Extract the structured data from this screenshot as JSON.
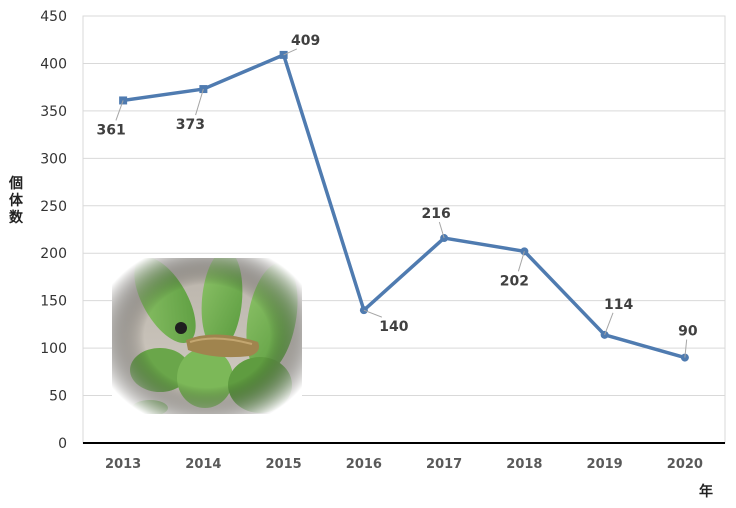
{
  "chart_data": {
    "type": "line",
    "categories": [
      "2013",
      "2014",
      "2015",
      "2016",
      "2017",
      "2018",
      "2019",
      "2020"
    ],
    "series": [
      {
        "values": [
          361,
          373,
          409,
          140,
          216,
          202,
          114,
          90
        ],
        "color": "#4f7bb0"
      }
    ],
    "data_labels": [
      "361",
      "373",
      "409",
      "140",
      "216",
      "202",
      "114",
      "90"
    ],
    "xlabel": "年",
    "ylabel": "個体数",
    "ylim": [
      0,
      450
    ],
    "yticks": [
      0,
      50,
      100,
      150,
      200,
      250,
      300,
      350,
      400,
      450
    ],
    "grid": true,
    "colors": {
      "line": "#4f7bb0",
      "grid": "#d9d9d9",
      "axis": "#000000"
    },
    "inset_image": "caterpillar-on-leaves"
  }
}
